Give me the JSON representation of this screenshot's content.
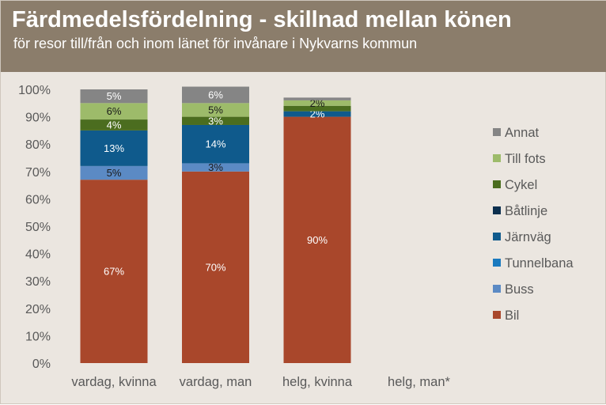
{
  "header": {
    "title": "Färdmedelsfördelning - skillnad mellan könen",
    "subtitle": "för resor till/från och inom länet för invånare i Nykvarns kommun"
  },
  "colors": {
    "header_bg": "#8b7d6b",
    "plot_bg": "#ebe6e0"
  },
  "chart_data": {
    "type": "bar",
    "stacked": true,
    "percent_stacked": true,
    "categories": [
      "vardag, kvinna",
      "vardag, man",
      "helg, kvinna",
      "helg, man*"
    ],
    "ylim": [
      0,
      100
    ],
    "yticks": [
      "0%",
      "10%",
      "20%",
      "30%",
      "40%",
      "50%",
      "60%",
      "70%",
      "80%",
      "90%",
      "100%"
    ],
    "grid": false,
    "legend_position": "right",
    "series": [
      {
        "name": "Bil",
        "color": "#a9472b",
        "label_color": "#ffffff",
        "values": [
          67,
          70,
          90,
          null
        ],
        "labels": [
          "67%",
          "70%",
          "90%",
          ""
        ]
      },
      {
        "name": "Buss",
        "color": "#5b8ac4",
        "label_color": "#1a1a1a",
        "values": [
          5,
          3,
          0,
          null
        ],
        "labels": [
          "5%",
          "3%",
          "",
          ""
        ]
      },
      {
        "name": "Tunnelbana",
        "color": "#1a7abf",
        "label_color": "#ffffff",
        "values": [
          0,
          0,
          0,
          null
        ],
        "labels": [
          "",
          "",
          "",
          ""
        ]
      },
      {
        "name": "Järnväg",
        "color": "#0f5a8c",
        "label_color": "#ffffff",
        "values": [
          13,
          14,
          2,
          null
        ],
        "labels": [
          "13%",
          "14%",
          "2%",
          ""
        ]
      },
      {
        "name": "Båtlinje",
        "color": "#0b2f4e",
        "label_color": "#ffffff",
        "values": [
          0,
          0,
          0,
          null
        ],
        "labels": [
          "",
          "",
          "",
          ""
        ]
      },
      {
        "name": "Cykel",
        "color": "#4b6d1f",
        "label_color": "#ffffff",
        "values": [
          4,
          3,
          2,
          null
        ],
        "labels": [
          "4%",
          "3%",
          "",
          ""
        ]
      },
      {
        "name": "Till fots",
        "color": "#9dbb6a",
        "label_color": "#1a1a1a",
        "values": [
          6,
          5,
          2,
          null
        ],
        "labels": [
          "6%",
          "5%",
          "2%",
          ""
        ]
      },
      {
        "name": "Annat",
        "color": "#858585",
        "label_color": "#ffffff",
        "values": [
          5,
          6,
          1,
          null
        ],
        "labels": [
          "5%",
          "6%",
          "",
          ""
        ]
      }
    ]
  }
}
